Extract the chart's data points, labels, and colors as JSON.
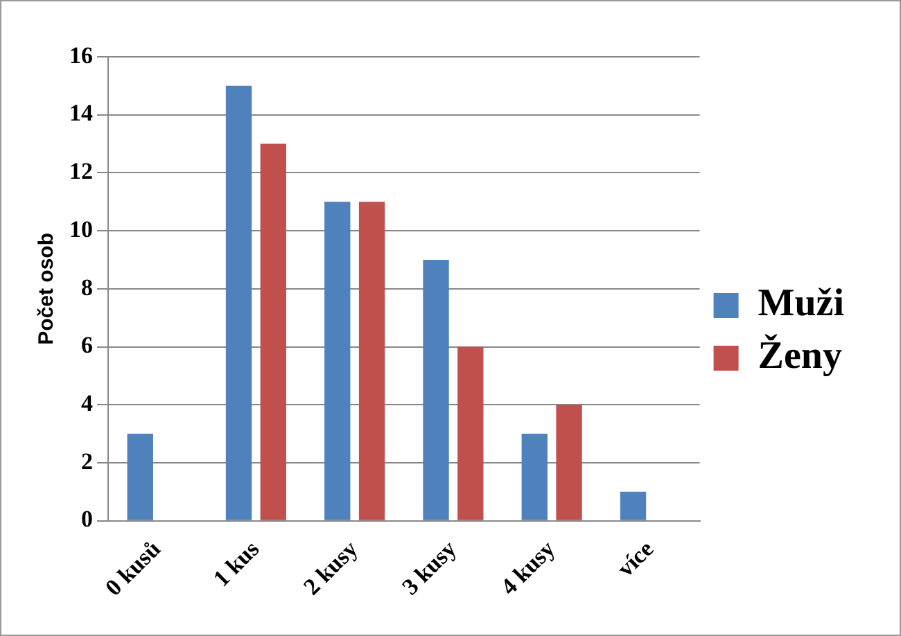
{
  "chart_data": {
    "type": "bar",
    "ylabel": "Počet osob",
    "categories": [
      "0 kusů",
      "1 kus",
      "2 kusy",
      "3 kusy",
      "4 kusy",
      "více"
    ],
    "series": [
      {
        "name": "Muži",
        "color": "#4f81bd",
        "values": [
          3,
          15,
          11,
          9,
          3,
          1
        ]
      },
      {
        "name": "Ženy",
        "color": "#c0504d",
        "values": [
          0,
          13,
          11,
          6,
          4,
          0
        ]
      }
    ],
    "ylim": [
      0,
      16
    ],
    "yticks": [
      0,
      2,
      4,
      6,
      8,
      10,
      12,
      14,
      16
    ],
    "grid": "y",
    "legend": "right"
  }
}
